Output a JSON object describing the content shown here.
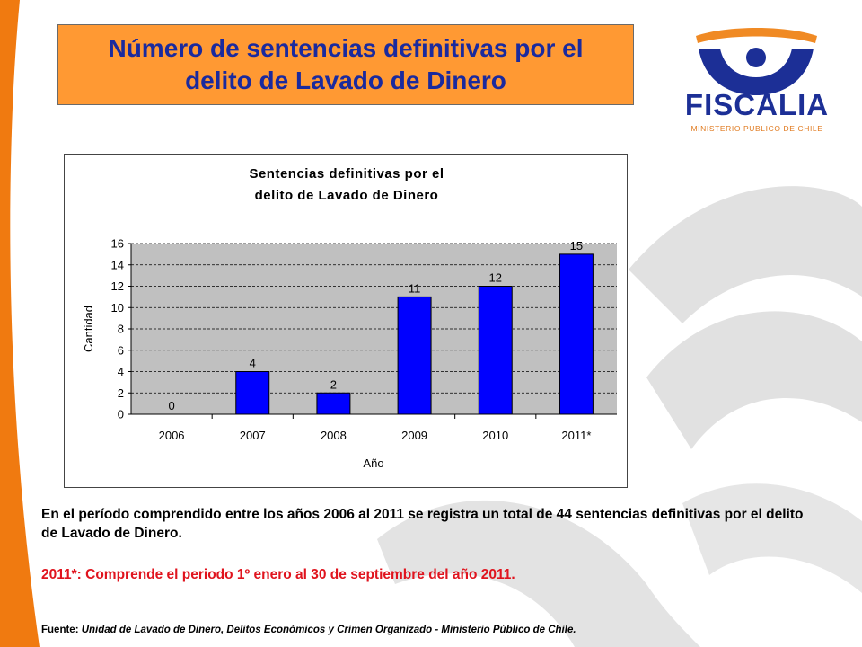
{
  "slide": {
    "title": "Número de sentencias definitivas por el\ndelito de Lavado de Dinero",
    "summary": "En el período comprendido entre los años 2006 al 2011 se registra un total de 44 sentencias definitivas por el delito de Lavado de Dinero.",
    "note": "2011*: Comprende el periodo 1º enero al 30 de septiembre del año 2011.",
    "source_label": "Fuente:",
    "source_text": " Unidad de Lavado de Dinero, Delitos Económicos y Crimen Organizado - Ministerio Público de Chile."
  },
  "logo": {
    "name": "FISCALIA",
    "subtitle": "MINISTERIO PUBLICO DE CHILE",
    "icon": "fiscalia-emblem-icon",
    "colors": {
      "blue": "#1c2f96",
      "orange": "#f08a24"
    }
  },
  "colors": {
    "accent_orange": "#ff9933",
    "title_blue": "#1a2a9e",
    "bar_fill": "#0000ff",
    "plot_bg": "#c0c0c0",
    "note_red": "#e0141e"
  },
  "chart_data": {
    "type": "bar",
    "title_lines": [
      "Sentencias definitivas por el",
      "delito de Lavado de Dinero"
    ],
    "xlabel": "Año",
    "ylabel": "Cantidad",
    "categories": [
      "2006",
      "2007",
      "2008",
      "2009",
      "2010",
      "2011*"
    ],
    "values": [
      0,
      4,
      2,
      11,
      12,
      15
    ],
    "ylim": [
      0,
      16
    ],
    "yticks": [
      0,
      2,
      4,
      6,
      8,
      10,
      12,
      14,
      16
    ],
    "grid": true,
    "legend": "none"
  }
}
